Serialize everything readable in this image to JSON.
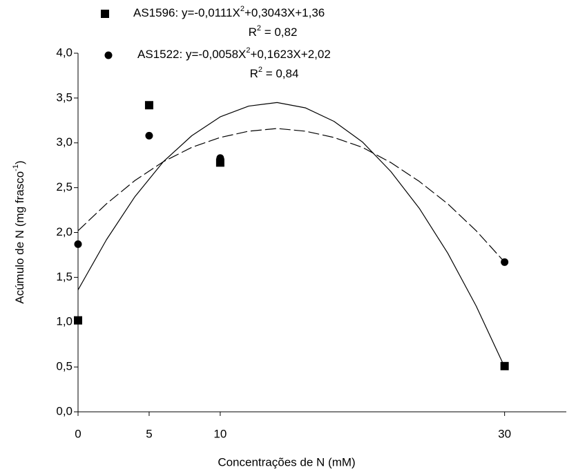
{
  "chart_data": {
    "type": "scatter",
    "x_label": "Concentrações de N (mM)",
    "y_label": [
      "Acúmulo de N (mg frasco",
      "-1",
      ")"
    ],
    "xlim": [
      0,
      34
    ],
    "xticks": [
      0,
      5,
      10,
      30
    ],
    "ylim": [
      0,
      4
    ],
    "yticks": [
      {
        "value": 0,
        "label": "0,0"
      },
      {
        "value": 0.5,
        "label": "0,5"
      },
      {
        "value": 1,
        "label": "1,0"
      },
      {
        "value": 1.5,
        "label": "1,5"
      },
      {
        "value": 2,
        "label": "2,0"
      },
      {
        "value": 2.5,
        "label": "2,5"
      },
      {
        "value": 3,
        "label": "3,0"
      },
      {
        "value": 3.5,
        "label": "3,5"
      },
      {
        "value": 4,
        "label": "4,0"
      }
    ],
    "series": [
      {
        "legend": {
          "equation": [
            "AS1596: y=-0,0111X",
            "2",
            "+0,3043X+1,36"
          ],
          "r2": [
            "R",
            "2",
            " = 0,82"
          ]
        },
        "color": "#000000",
        "marker": "square",
        "x": [
          0,
          5,
          10,
          30
        ],
        "values": [
          1.02,
          3.42,
          2.78,
          0.51
        ],
        "fit": {
          "dash": false,
          "x": [
            0,
            2,
            4,
            6,
            8,
            10,
            12,
            14,
            16,
            18,
            20,
            22,
            24,
            26,
            28,
            30
          ],
          "values": [
            1.36,
            1.92,
            2.4,
            2.79,
            3.08,
            3.29,
            3.41,
            3.45,
            3.39,
            3.24,
            3.01,
            2.68,
            2.27,
            1.77,
            1.18,
            0.5
          ]
        }
      },
      {
        "legend": {
          "equation": [
            "AS1522: y=-0,0058X",
            "2",
            "+0,1623X+2,02"
          ],
          "r2": [
            "R",
            "2",
            " = 0,84"
          ]
        },
        "color": "#000000",
        "marker": "circle",
        "x": [
          0,
          5,
          10,
          30
        ],
        "values": [
          1.87,
          3.08,
          2.83,
          1.67
        ],
        "fit": {
          "dash": true,
          "x": [
            0,
            2,
            4,
            6,
            8,
            10,
            12,
            14,
            16,
            18,
            20,
            22,
            24,
            26,
            28,
            30
          ],
          "values": [
            2.02,
            2.32,
            2.58,
            2.79,
            2.95,
            3.06,
            3.13,
            3.16,
            3.13,
            3.06,
            2.95,
            2.78,
            2.57,
            2.32,
            2.02,
            1.67
          ]
        }
      }
    ]
  }
}
